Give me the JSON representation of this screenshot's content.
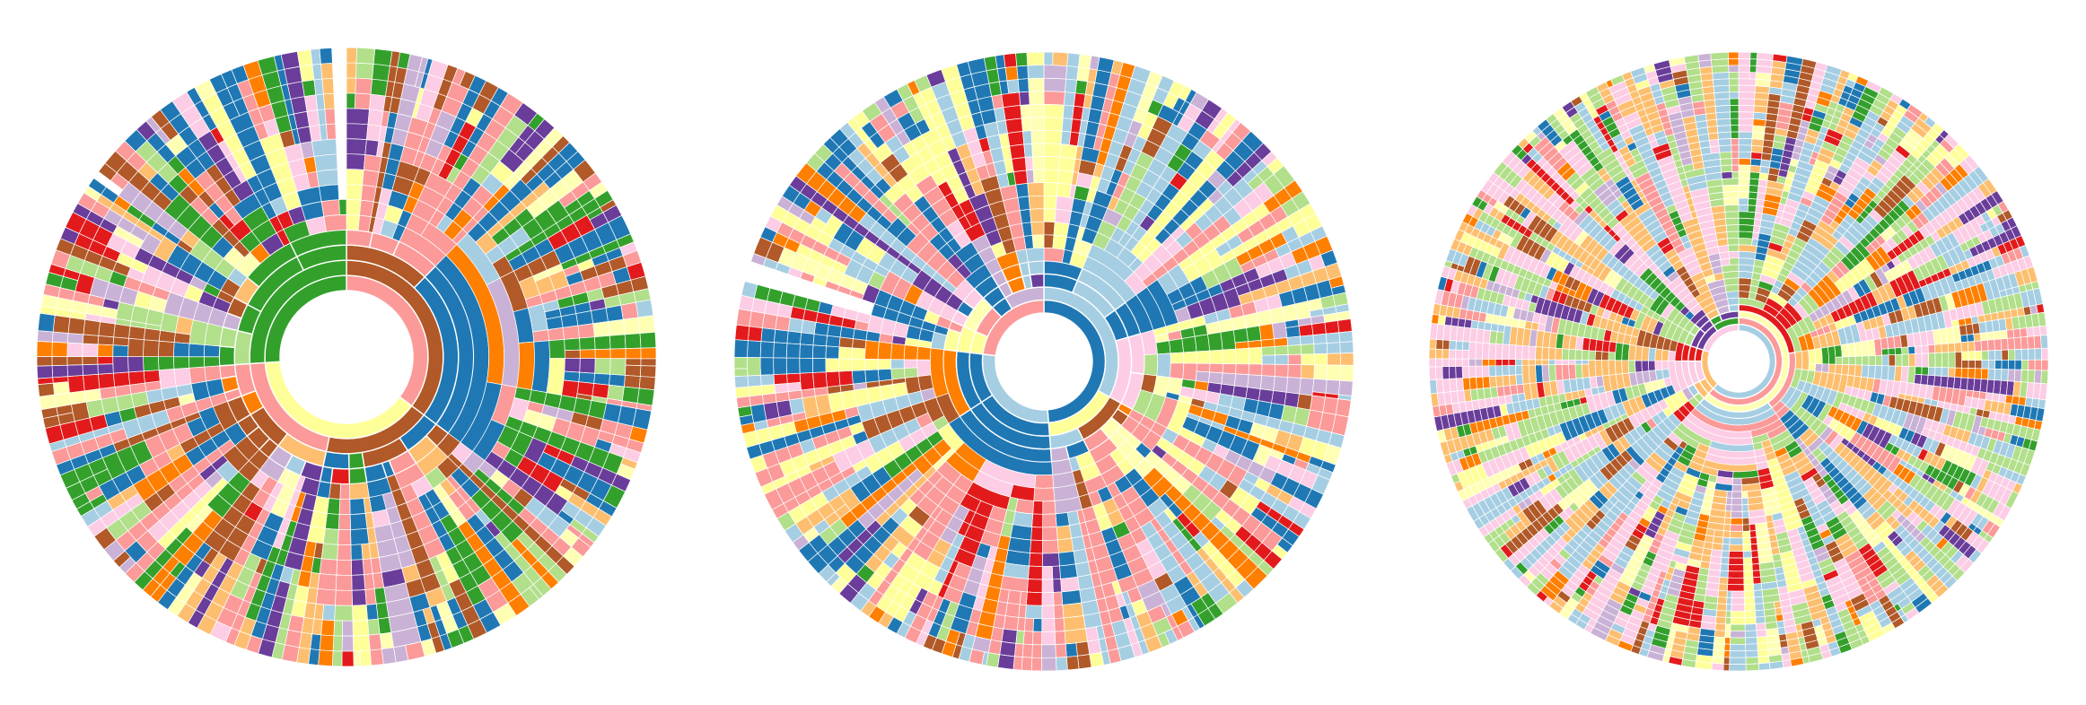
{
  "palette": [
    "#1f78b4",
    "#a6cee3",
    "#33a02c",
    "#b2df8a",
    "#e31a1c",
    "#fb9a99",
    "#ff7f00",
    "#fdbf6f",
    "#6a3d9a",
    "#cab2d6",
    "#b15928",
    "#ffff99",
    "#fccde5",
    "#ffffb3"
  ],
  "background": "#ffffff",
  "separator_color": "#ffffff",
  "diagrams": [
    {
      "id": "sunburst-1",
      "hole_color": "#ffffff",
      "ring_count": 16,
      "root_color": "#fb9a99",
      "dominant_colors": [
        "#fb9a99",
        "#b15928",
        "#33a02c",
        "#1f78b4"
      ],
      "gaps": [
        "top",
        "upper-left"
      ]
    },
    {
      "id": "sunburst-2",
      "hole_color": "#ffffff",
      "ring_count": 20,
      "root_color": "#1f78b4",
      "dominant_colors": [
        "#1f78b4",
        "#a6cee3",
        "#fb9a99",
        "#ffff99"
      ],
      "gaps": [
        "left"
      ]
    },
    {
      "id": "sunburst-3",
      "hole_color": "#ffffff",
      "ring_count": 42,
      "root_color": "#a6cee3",
      "dominant_colors": [
        "#a6cee3",
        "#fdbf6f",
        "#b2df8a",
        "#fccde5"
      ],
      "gaps": []
    }
  ]
}
